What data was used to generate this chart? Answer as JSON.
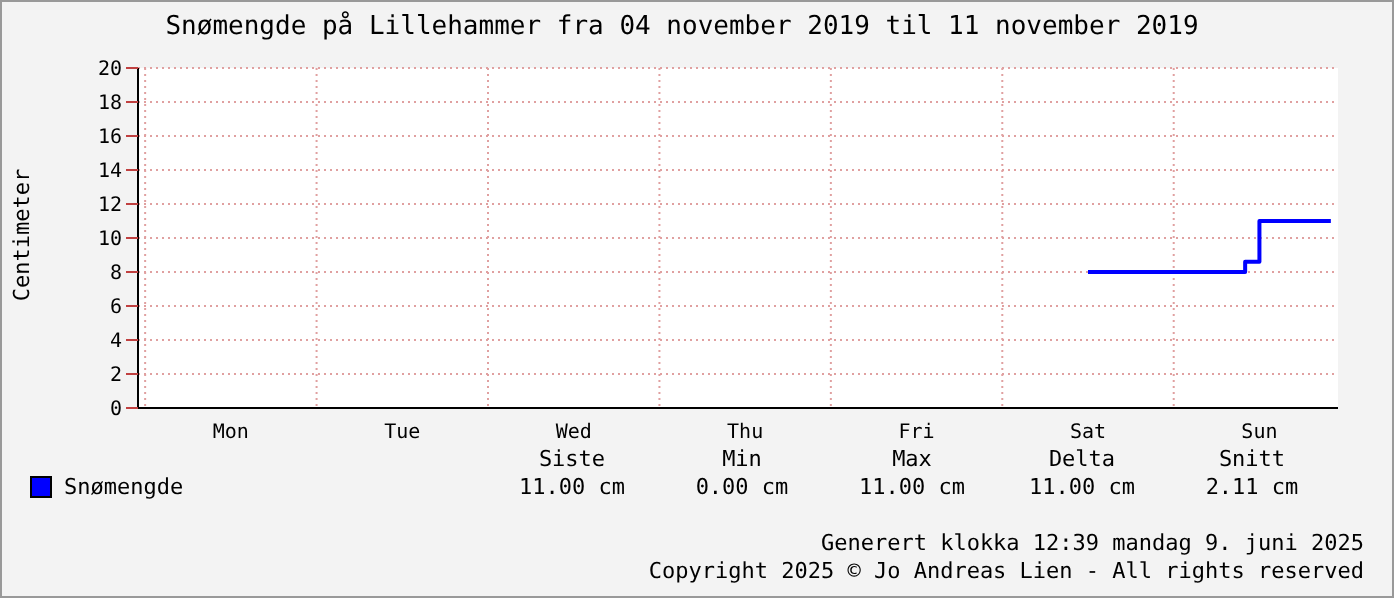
{
  "chart_data": {
    "type": "step",
    "title": "Snømengde på Lillehammer fra 04 november 2019 til 11 november 2019",
    "ylabel": "Centimeter",
    "categories": [
      null,
      null,
      null,
      null,
      null,
      null,
      "Mon",
      null,
      null,
      null,
      null,
      null,
      null,
      null,
      null,
      null,
      null,
      null,
      "Tue",
      null,
      null,
      null,
      null,
      null,
      null,
      null,
      null,
      null,
      null,
      null,
      "Wed",
      null,
      null,
      null,
      null,
      null,
      null,
      null,
      null,
      null,
      null,
      null,
      "Thu",
      null,
      null,
      null,
      null,
      null,
      null,
      null,
      null,
      null,
      null,
      null,
      "Fri",
      null,
      null,
      null,
      null,
      null,
      null,
      null,
      null,
      null,
      null,
      null,
      "Sat",
      null,
      null,
      null,
      null,
      null,
      null,
      null,
      null,
      null,
      null,
      null,
      "Sun",
      null,
      null,
      null,
      null,
      null
    ],
    "series": [
      {
        "name": "Snømengde",
        "color": "#0000ff",
        "values": [
          null,
          null,
          null,
          null,
          null,
          null,
          null,
          null,
          null,
          null,
          null,
          null,
          null,
          null,
          null,
          null,
          null,
          null,
          null,
          null,
          null,
          null,
          null,
          null,
          null,
          null,
          null,
          null,
          null,
          null,
          null,
          null,
          null,
          null,
          null,
          null,
          null,
          null,
          null,
          null,
          null,
          null,
          null,
          null,
          null,
          null,
          null,
          null,
          null,
          null,
          null,
          null,
          null,
          null,
          null,
          null,
          null,
          null,
          null,
          null,
          null,
          null,
          null,
          null,
          null,
          null,
          8,
          8,
          8,
          8,
          8,
          8,
          8,
          8,
          8,
          8,
          8,
          8.6,
          11,
          11,
          11,
          11,
          11,
          11
        ]
      }
    ],
    "ylim": [
      0,
      20
    ],
    "yticks": [
      0,
      2,
      4,
      6,
      8,
      10,
      12,
      14,
      16,
      18,
      20
    ],
    "grid": true,
    "legend": "bottom left",
    "annotations": [
      "Siste",
      "Min",
      "Max",
      "Delta",
      "Snitt",
      "11.00 cm",
      "0.00 cm",
      "11.00 cm",
      "11.00 cm",
      "2.11 cm",
      "Generert klokka 12:39 mandag 9. juni 2025",
      "Copyright 2025 © Jo Andreas Lien - All rights reserved"
    ]
  }
}
